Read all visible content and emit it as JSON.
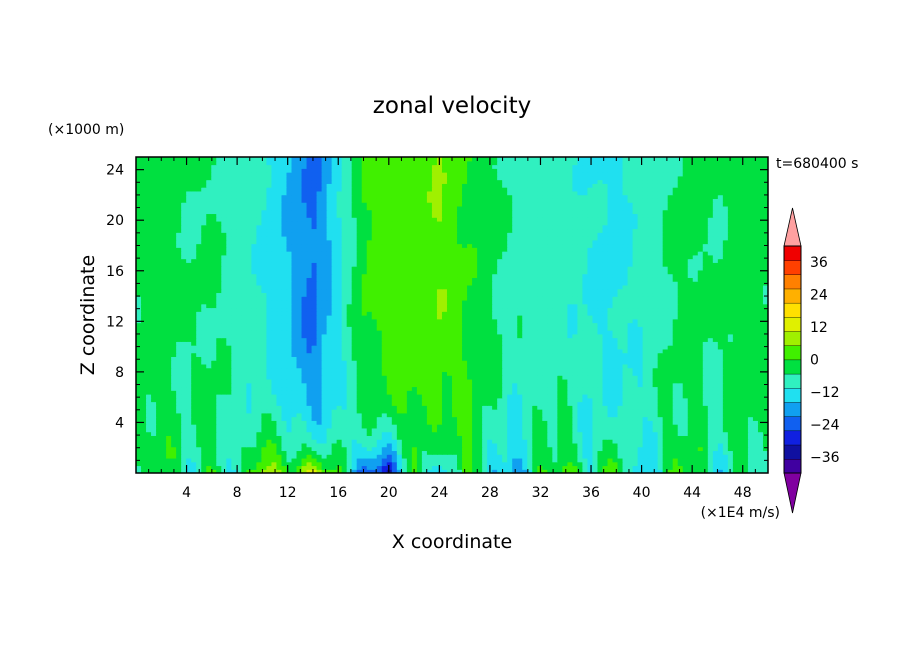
{
  "chart_data": {
    "type": "heatmap",
    "title": "zonal velocity",
    "xlabel": "X coordinate",
    "ylabel": "Z coordinate",
    "y_unit_note": "(×1000 m)",
    "value_unit_note": "(×1E4 m/s)",
    "time_label": "t=680400 s",
    "xlim": [
      0,
      50
    ],
    "ylim": [
      0,
      25
    ],
    "x_ticks": [
      4,
      8,
      12,
      16,
      20,
      24,
      28,
      32,
      36,
      40,
      44,
      48
    ],
    "x_tick_labels": [
      "4",
      "8",
      "12",
      "16",
      "20",
      "24",
      "28",
      "32",
      "36",
      "40",
      "44",
      "48"
    ],
    "y_ticks": [
      4,
      8,
      12,
      16,
      20,
      24
    ],
    "y_tick_labels": [
      "4",
      "8",
      "12",
      "16",
      "20",
      "24"
    ],
    "colorbar": {
      "min": -42,
      "max": 42,
      "step": 6,
      "tick_values": [
        36,
        24,
        12,
        0,
        -12,
        -24,
        -36
      ],
      "tick_labels": [
        "36",
        "24",
        "12",
        "0",
        "−12",
        "−24",
        "−36"
      ],
      "colors": [
        "#7a00a0",
        "#4000a0",
        "#1010a0",
        "#1020e0",
        "#1060f0",
        "#10a0f0",
        "#20e0f0",
        "#30f0c0",
        "#00e040",
        "#40f000",
        "#a0f000",
        "#e0f000",
        "#ffe000",
        "#ffb000",
        "#ff8000",
        "#ff4000",
        "#f00000",
        "#ffa0a0"
      ],
      "under_color": "#8000a0",
      "over_color": "#ffa0a0"
    },
    "column_profile_x": [
      0,
      2,
      4,
      6,
      8,
      10,
      12,
      14,
      16,
      18,
      20,
      22,
      24,
      26,
      28,
      30,
      32,
      34,
      36,
      38,
      40,
      42,
      44,
      46,
      48,
      50
    ],
    "upper_profile_values": [
      2,
      3,
      0,
      1,
      -3,
      -6,
      -12,
      -20,
      -8,
      6,
      10,
      8,
      12,
      6,
      2,
      -2,
      -2,
      -4,
      -6,
      -8,
      -4,
      0,
      2,
      0,
      4,
      2
    ],
    "surface_profile_values": [
      -4,
      8,
      -6,
      6,
      -8,
      16,
      10,
      18,
      4,
      -20,
      -28,
      6,
      -16,
      10,
      -8,
      -18,
      4,
      10,
      -6,
      10,
      -14,
      2,
      8,
      -10,
      4,
      -6
    ]
  }
}
